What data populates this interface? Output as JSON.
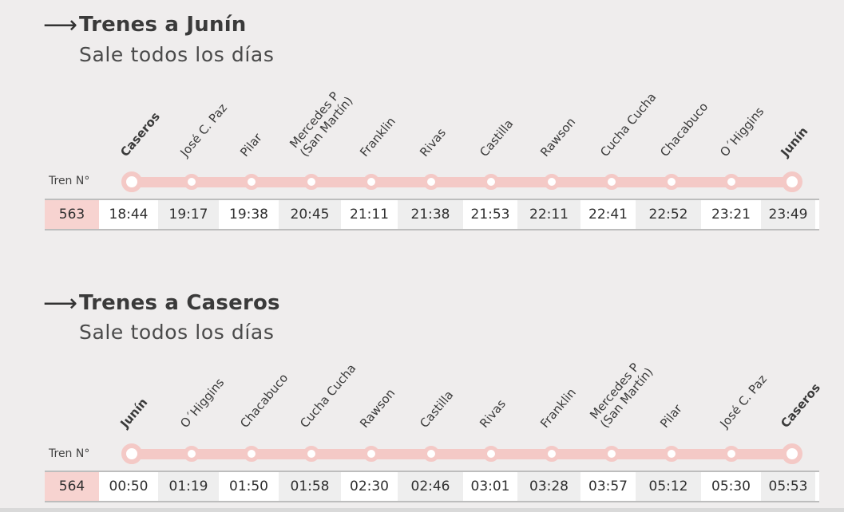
{
  "schedules": [
    {
      "title": "Trenes a Junín",
      "subtitle": "Sale todos los días",
      "tren_label": "Tren N°",
      "train_number": "563",
      "stations": [
        {
          "name": "Caseros",
          "bold": true
        },
        {
          "name": "José C. Paz",
          "bold": false
        },
        {
          "name": "Pilar",
          "bold": false
        },
        {
          "name": "Mercedes P\n(San Martín)",
          "bold": false
        },
        {
          "name": "Franklin",
          "bold": false
        },
        {
          "name": "Rivas",
          "bold": false
        },
        {
          "name": "Castilla",
          "bold": false
        },
        {
          "name": "Rawson",
          "bold": false
        },
        {
          "name": "Cucha Cucha",
          "bold": false
        },
        {
          "name": "Chacabuco",
          "bold": false
        },
        {
          "name": "O´Higgins",
          "bold": false
        },
        {
          "name": "Junín",
          "bold": true
        }
      ],
      "times": [
        "18:44",
        "19:17",
        "19:38",
        "20:45",
        "21:11",
        "21:38",
        "21:53",
        "22:11",
        "22:41",
        "22:52",
        "23:21",
        "23:49"
      ]
    },
    {
      "title": "Trenes a Caseros",
      "subtitle": "Sale todos los días",
      "tren_label": "Tren N°",
      "train_number": "564",
      "stations": [
        {
          "name": "Junín",
          "bold": true
        },
        {
          "name": "O´Higgins",
          "bold": false
        },
        {
          "name": "Chacabuco",
          "bold": false
        },
        {
          "name": "Cucha Cucha",
          "bold": false
        },
        {
          "name": "Rawson",
          "bold": false
        },
        {
          "name": "Castilla",
          "bold": false
        },
        {
          "name": "Rivas",
          "bold": false
        },
        {
          "name": "Franklin",
          "bold": false
        },
        {
          "name": "Mercedes P\n(San Martín)",
          "bold": false
        },
        {
          "name": "Pilar",
          "bold": false
        },
        {
          "name": "José C. Paz",
          "bold": false
        },
        {
          "name": "Caseros",
          "bold": true
        }
      ],
      "times": [
        "00:50",
        "01:19",
        "01:50",
        "01:58",
        "02:30",
        "02:46",
        "03:01",
        "03:28",
        "03:57",
        "05:12",
        "05:30",
        "05:53"
      ]
    }
  ],
  "colors": {
    "line": "#f4c9c6",
    "train_number_bg": "#f7d3d0",
    "background": "#efeded"
  },
  "icons": {
    "arrow": "right-arrow-icon"
  }
}
